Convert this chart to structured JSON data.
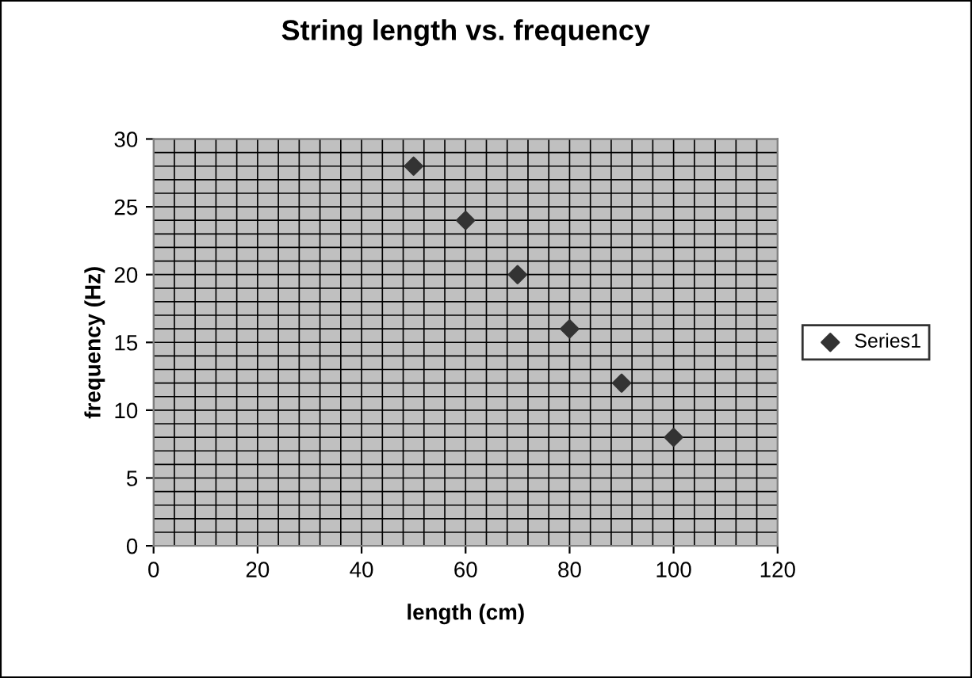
{
  "chart_data": {
    "type": "scatter",
    "title": "String length vs. frequency",
    "xlabel": "length (cm)",
    "ylabel": "frequency (Hz)",
    "x": [
      50,
      60,
      70,
      80,
      90,
      100
    ],
    "series": [
      {
        "name": "Series1",
        "color": "#333333",
        "values": [
          28,
          24,
          20,
          16,
          12,
          8
        ]
      }
    ],
    "xlim": [
      0,
      120
    ],
    "xticks": [
      0,
      20,
      40,
      60,
      80,
      100,
      120
    ],
    "ylim": [
      0,
      30
    ],
    "yticks": [
      0,
      5,
      10,
      15,
      20,
      25,
      30
    ],
    "grid": true,
    "legend": "right",
    "marker": "diamond"
  }
}
